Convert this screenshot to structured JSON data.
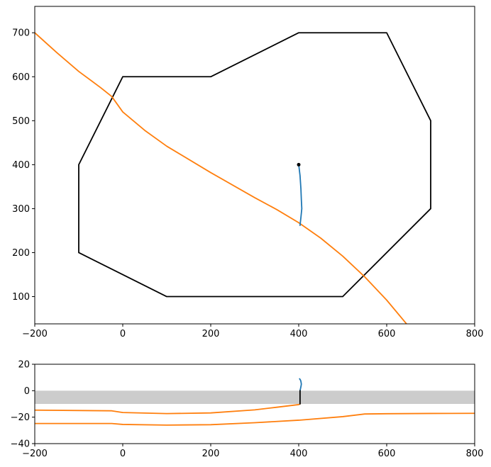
{
  "chart_data": [
    {
      "type": "line",
      "panel": "top",
      "title": "",
      "xlabel": "",
      "ylabel": "",
      "xlim": [
        -200,
        800
      ],
      "ylim": [
        38,
        760
      ],
      "xticks": [
        -200,
        0,
        200,
        400,
        600,
        800
      ],
      "yticks": [
        100,
        200,
        300,
        400,
        500,
        600,
        700
      ],
      "grid": false,
      "legend": "none",
      "colors": {
        "polygon": "#000000",
        "track": "#1f77b4",
        "curve": "#ff7f0e"
      },
      "series": [
        {
          "kind": "polygon",
          "color": "#000000",
          "points": [
            [
              0,
              600
            ],
            [
              200,
              600
            ],
            [
              400,
              700
            ],
            [
              600,
              700
            ],
            [
              700,
              500
            ],
            [
              700,
              300
            ],
            [
              500,
              100
            ],
            [
              100,
              100
            ],
            [
              -100,
              200
            ],
            [
              -100,
              400
            ],
            [
              0,
              600
            ]
          ]
        },
        {
          "kind": "curve",
          "color": "#ff7f0e",
          "points": [
            [
              -200,
              700
            ],
            [
              -150,
              655
            ],
            [
              -100,
              612
            ],
            [
              -50,
              575
            ],
            [
              -25,
              555
            ],
            [
              0,
              520
            ],
            [
              50,
              478
            ],
            [
              100,
              442
            ],
            [
              200,
              382
            ],
            [
              300,
              325
            ],
            [
              350,
              298
            ],
            [
              400,
              268
            ],
            [
              450,
              233
            ],
            [
              500,
              192
            ],
            [
              550,
              145
            ],
            [
              600,
              92
            ],
            [
              645,
              38
            ]
          ]
        },
        {
          "kind": "track",
          "color": "#1f77b4",
          "points": [
            [
              400,
              400
            ],
            [
              403,
              375
            ],
            [
              405,
              345
            ],
            [
              406,
              320
            ],
            [
              407,
              300
            ],
            [
              405,
              280
            ],
            [
              403,
              262
            ]
          ]
        },
        {
          "kind": "marker",
          "color": "#000000",
          "points": [
            [
              400,
              400
            ]
          ]
        }
      ]
    },
    {
      "type": "line",
      "panel": "bottom",
      "title": "",
      "xlabel": "",
      "ylabel": "",
      "xlim": [
        -200,
        800
      ],
      "ylim": [
        -40,
        20
      ],
      "xticks": [
        -200,
        0,
        200,
        400,
        600,
        800
      ],
      "yticks": [
        -40,
        -20,
        0,
        20
      ],
      "grid": false,
      "legend": "none",
      "band": {
        "y0": -10,
        "y1": 0,
        "color": "#cccccc"
      },
      "series": [
        {
          "kind": "curve-upper",
          "color": "#ff7f0e",
          "points": [
            [
              -200,
              -14.7
            ],
            [
              -25,
              -15.2
            ],
            [
              0,
              -16.5
            ],
            [
              100,
              -17.3
            ],
            [
              200,
              -16.8
            ],
            [
              300,
              -14.5
            ],
            [
              350,
              -12.5
            ],
            [
              400,
              -10.5
            ],
            [
              403,
              -10.0
            ]
          ]
        },
        {
          "kind": "curve-lower",
          "color": "#ff7f0e",
          "points": [
            [
              -200,
              -24.8
            ],
            [
              -25,
              -24.8
            ],
            [
              0,
              -25.5
            ],
            [
              100,
              -26.0
            ],
            [
              200,
              -25.7
            ],
            [
              300,
              -24.2
            ],
            [
              400,
              -22.3
            ],
            [
              500,
              -19.6
            ],
            [
              550,
              -17.6
            ],
            [
              600,
              -17.4
            ],
            [
              700,
              -17.2
            ],
            [
              800,
              -17.1
            ]
          ]
        },
        {
          "kind": "track",
          "color": "#1f77b4",
          "points": [
            [
              403,
              0
            ],
            [
              405,
              3
            ],
            [
              406,
              5
            ],
            [
              405,
              7
            ],
            [
              404,
              8
            ],
            [
              402,
              9
            ]
          ]
        },
        {
          "kind": "stem",
          "color": "#000000",
          "points": [
            [
              403,
              -10
            ],
            [
              403,
              0
            ]
          ]
        }
      ]
    }
  ]
}
